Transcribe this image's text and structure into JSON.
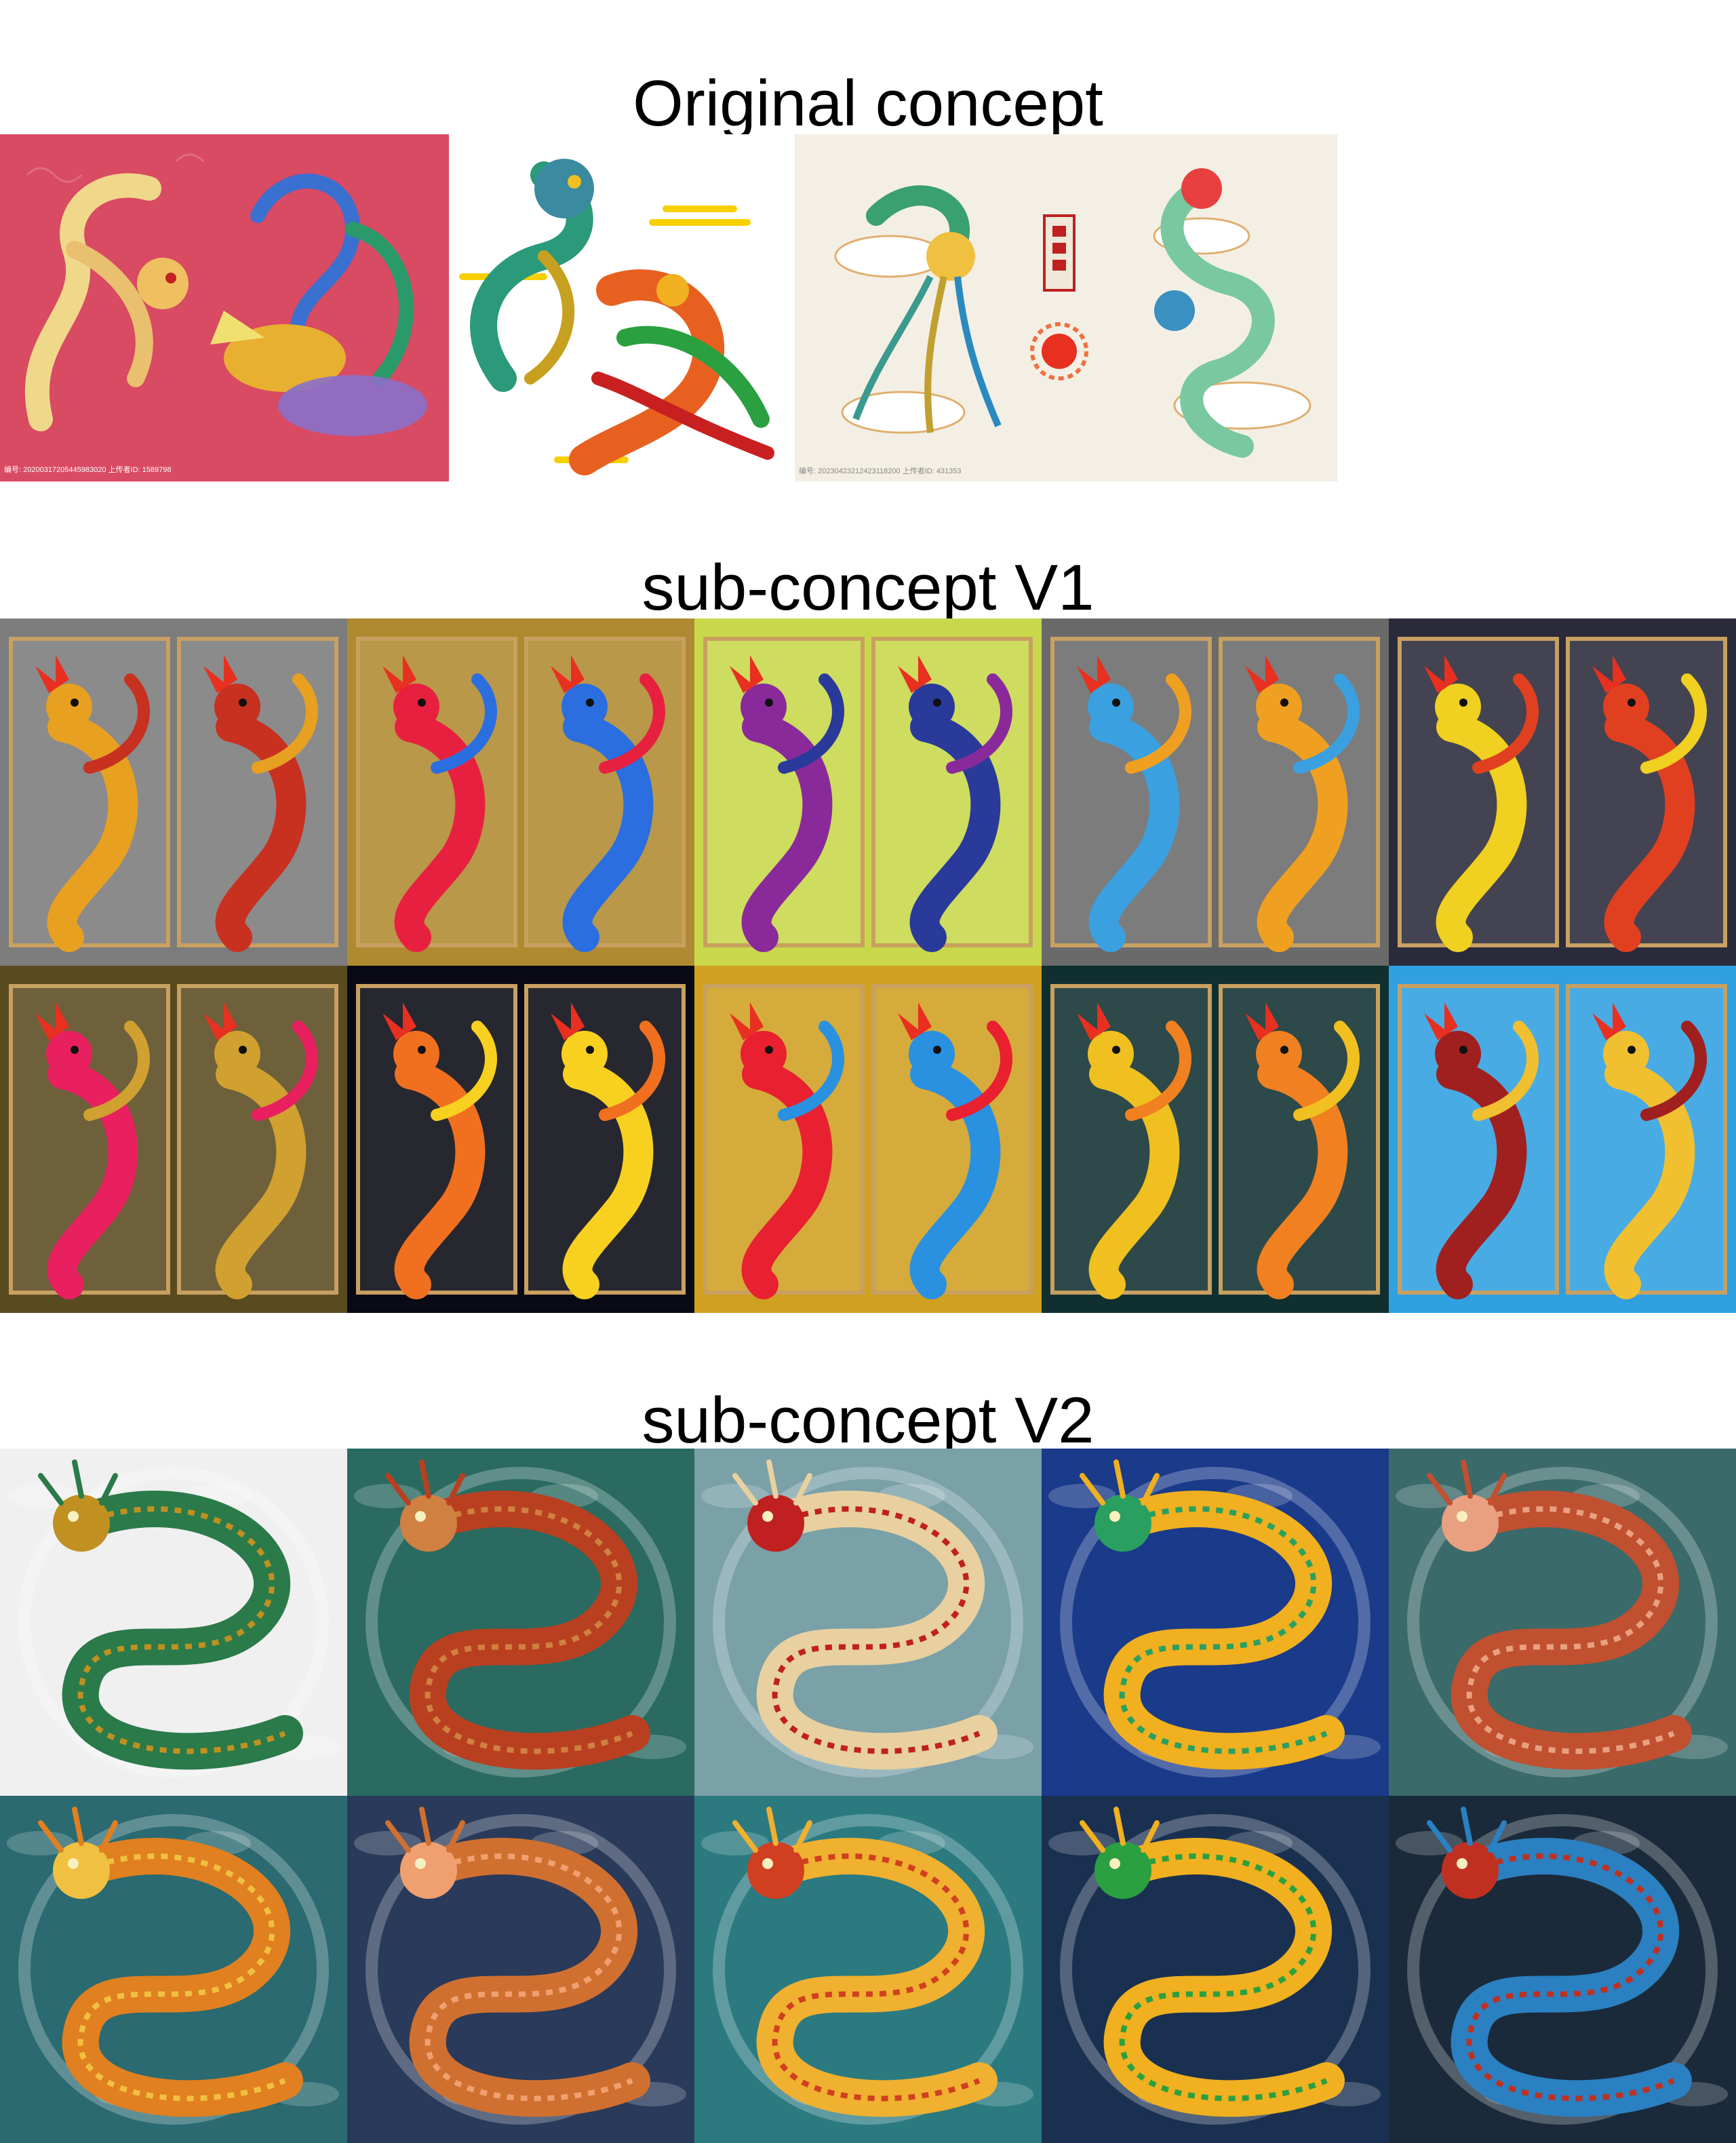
{
  "headings": {
    "original": "Original concept",
    "v1": "sub-concept V1",
    "v2": "sub-concept V2"
  },
  "original_images": [
    {
      "subject": "dragon and phoenix on red",
      "bg": "#d94a63",
      "caption": "编号: 20200317205445983020 上传者ID: 1589798"
    },
    {
      "subject": "dragon and phoenix on white",
      "bg": "#ffffff",
      "caption": ""
    },
    {
      "subject": "phoenix and dragon on cream",
      "bg": "#f4efe5",
      "caption": "编号: 20230423212423118200 上传者ID: 431353"
    }
  ],
  "v1_images": [
    {
      "bg": "#7c7c7c",
      "accent1": "#e8a020",
      "accent2": "#c83020"
    },
    {
      "bg": "#b08a30",
      "accent1": "#e82040",
      "accent2": "#2a6ee0"
    },
    {
      "bg": "#c8d84a",
      "accent1": "#8a2a9a",
      "accent2": "#2a3a9a"
    },
    {
      "bg": "#6a6a6a",
      "accent1": "#3aa0e0",
      "accent2": "#f0a020"
    },
    {
      "bg": "#2a2a3a",
      "accent1": "#f0d020",
      "accent2": "#e04020"
    },
    {
      "bg": "#5a4a20",
      "accent1": "#e82060",
      "accent2": "#d0a030"
    },
    {
      "bg": "#0a0a14",
      "accent1": "#f07020",
      "accent2": "#f8d020"
    },
    {
      "bg": "#d0a020",
      "accent1": "#e82030",
      "accent2": "#2a90e0"
    },
    {
      "bg": "#103030",
      "accent1": "#f0c020",
      "accent2": "#f08020"
    },
    {
      "bg": "#30a0e0",
      "accent1": "#a02020",
      "accent2": "#f0c030"
    }
  ],
  "v2_images": [
    {
      "bg": "#f0f0f0",
      "accent1": "#2a7a4a",
      "accent2": "#c09020"
    },
    {
      "bg": "#2a6a60",
      "accent1": "#b84020",
      "accent2": "#d08040"
    },
    {
      "bg": "#7aa0a8",
      "accent1": "#e8d0a0",
      "accent2": "#c02020"
    },
    {
      "bg": "#1a3a8a",
      "accent1": "#f0b020",
      "accent2": "#2aa060"
    },
    {
      "bg": "#3a6a6a",
      "accent1": "#c05030",
      "accent2": "#e8a080"
    },
    {
      "bg": "#2a6a70",
      "accent1": "#e08020",
      "accent2": "#f0c040"
    },
    {
      "bg": "#2a3a5a",
      "accent1": "#d07030",
      "accent2": "#f0a070"
    },
    {
      "bg": "#2a7a80",
      "accent1": "#f0b030",
      "accent2": "#d04020"
    },
    {
      "bg": "#1a3050",
      "accent1": "#f0b020",
      "accent2": "#2aa040"
    },
    {
      "bg": "#1a2a3a",
      "accent1": "#2a80c0",
      "accent2": "#c03020"
    }
  ]
}
